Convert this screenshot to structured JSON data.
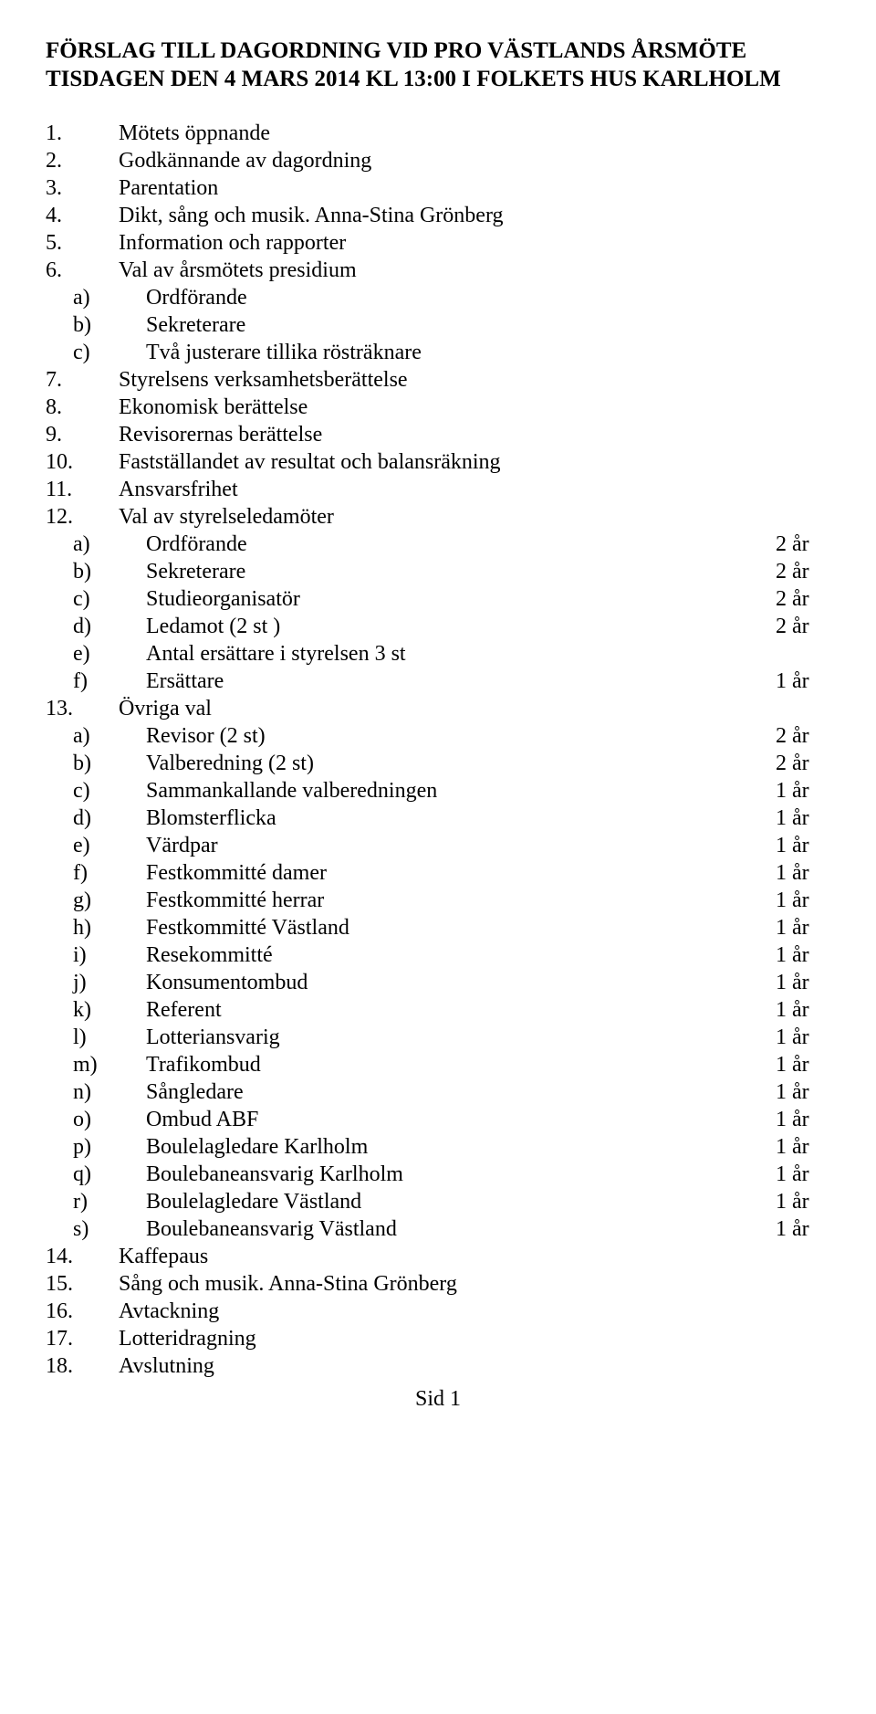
{
  "title_line1": "FÖRSLAG TILL DAGORDNING VID PRO VÄSTLANDS ÅRSMÖTE",
  "title_line2": "TISDAGEN DEN 4 MARS 2014 KL 13:00 I FOLKETS HUS KARLHOLM",
  "items": [
    {
      "n": "1.",
      "t": "Mötets öppnande"
    },
    {
      "n": "2.",
      "t": "Godkännande av dagordning"
    },
    {
      "n": "3.",
      "t": "Parentation"
    },
    {
      "n": "4.",
      "t": "Dikt, sång och musik. Anna-Stina Grönberg"
    },
    {
      "n": "5.",
      "t": "Information och rapporter"
    },
    {
      "n": "6.",
      "t": "Val av årsmötets presidium"
    },
    {
      "sub": "a)",
      "t": "Ordförande"
    },
    {
      "sub": "b)",
      "t": "Sekreterare"
    },
    {
      "sub": "c)",
      "t": "Två justerare tillika rösträknare"
    },
    {
      "n": "7.",
      "t": "Styrelsens verksamhetsberättelse"
    },
    {
      "n": "8.",
      "t": "Ekonomisk berättelse"
    },
    {
      "n": "9.",
      "t": "Revisorernas berättelse"
    },
    {
      "n": "10.",
      "t": "Fastställandet av resultat och balansräkning"
    },
    {
      "n": "11.",
      "t": "Ansvarsfrihet"
    },
    {
      "n": "12.",
      "t": "Val av styrelseledamöter"
    },
    {
      "sub": "a)",
      "t": "Ordförande",
      "term": "2 år"
    },
    {
      "sub": "b)",
      "t": "Sekreterare",
      "term": "2 år"
    },
    {
      "sub": "c)",
      "t": "Studieorganisatör",
      "term": "2 år"
    },
    {
      "sub": "d)",
      "t": "Ledamot (2 st )",
      "term": "2 år"
    },
    {
      "sub": "e)",
      "t": "Antal ersättare i styrelsen 3 st"
    },
    {
      "sub": "f)",
      "t": "Ersättare",
      "term": "1 år"
    },
    {
      "n": "13.",
      "t": "Övriga val"
    },
    {
      "sub": "a)",
      "t": "Revisor (2 st)",
      "term": "2 år"
    },
    {
      "sub": "b)",
      "t": "Valberedning (2 st)",
      "term": "2 år"
    },
    {
      "sub": "c)",
      "t": "Sammankallande valberedningen",
      "term": "1 år"
    },
    {
      "sub": "d)",
      "t": "Blomsterflicka",
      "term": "1 år"
    },
    {
      "sub": "e)",
      "t": "Värdpar",
      "term": "1 år"
    },
    {
      "sub": "f)",
      "t": "Festkommitté damer",
      "term": "1 år"
    },
    {
      "sub": "g)",
      "t": "Festkommitté herrar",
      "term": "1 år"
    },
    {
      "sub": "h)",
      "t": "Festkommitté Västland",
      "term": "1 år"
    },
    {
      "sub": "i)",
      "t": "Resekommitté",
      "term": "1 år"
    },
    {
      "sub": "j)",
      "t": "Konsumentombud",
      "term": "1 år"
    },
    {
      "sub": "k)",
      "t": "Referent",
      "term": "1 år"
    },
    {
      "sub": "l)",
      "t": "Lotteriansvarig",
      "term": "1 år"
    },
    {
      "sub": "m)",
      "t": "Trafikombud",
      "term": "1 år"
    },
    {
      "sub": "n)",
      "t": "Sångledare",
      "term": "1 år"
    },
    {
      "sub": "o)",
      "t": "Ombud ABF",
      "term": "1 år"
    },
    {
      "sub": "p)",
      "t": "Boulelagledare Karlholm",
      "term": "1 år"
    },
    {
      "sub": "q)",
      "t": "Boulebaneansvarig Karlholm",
      "term": "1 år"
    },
    {
      "sub": "r)",
      "t": "Boulelagledare Västland",
      "term": "1 år"
    },
    {
      "sub": "s)",
      "t": "Boulebaneansvarig Västland",
      "term": "1 år"
    },
    {
      "n": "14.",
      "t": "Kaffepaus"
    },
    {
      "n": "15.",
      "t": "Sång och musik. Anna-Stina Grönberg"
    },
    {
      "n": "16.",
      "t": "Avtackning"
    },
    {
      "n": "17.",
      "t": "Lotteridragning"
    },
    {
      "n": "18.",
      "t": "Avslutning"
    }
  ],
  "footer": "Sid 1"
}
